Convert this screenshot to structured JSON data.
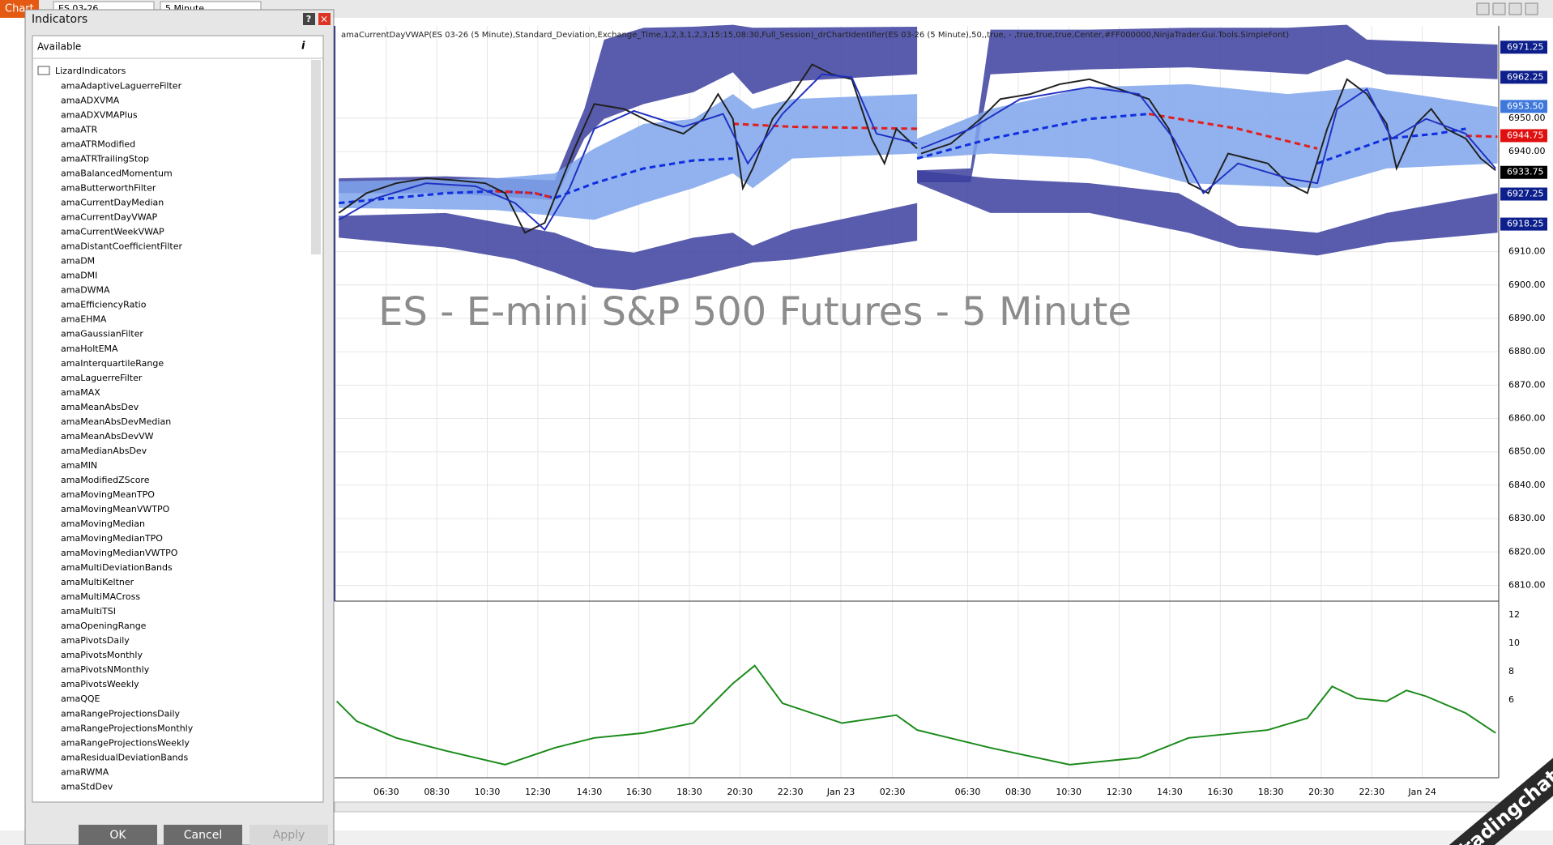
{
  "toolbar": {
    "tab": "Chart",
    "instrument": "ES 03-26",
    "interval": "5 Minute"
  },
  "dialog": {
    "title": "Indicators",
    "panel_title": "Available",
    "folder": "LizardIndicators",
    "items": [
      "amaAdaptiveLaguerreFilter",
      "amaADXVMA",
      "amaADXVMAPlus",
      "amaATR",
      "amaATRModified",
      "amaATRTrailingStop",
      "amaBalancedMomentum",
      "amaButterworthFilter",
      "amaCurrentDayMedian",
      "amaCurrentDayVWAP",
      "amaCurrentWeekVWAP",
      "amaDistantCoefficientFilter",
      "amaDM",
      "amaDMI",
      "amaDWMA",
      "amaEfficiencyRatio",
      "amaEHMA",
      "amaGaussianFilter",
      "amaHoltEMA",
      "amaInterquartileRange",
      "amaLaguerreFilter",
      "amaMAX",
      "amaMeanAbsDev",
      "amaMeanAbsDevMedian",
      "amaMeanAbsDevVW",
      "amaMedianAbsDev",
      "amaMIN",
      "amaModifiedZScore",
      "amaMovingMeanTPO",
      "amaMovingMeanVWTPO",
      "amaMovingMedian",
      "amaMovingMedianTPO",
      "amaMovingMedianVWTPO",
      "amaMultiDeviationBands",
      "amaMultiKeltner",
      "amaMultiMACross",
      "amaMultiTSI",
      "amaOpeningRange",
      "amaPivotsDaily",
      "amaPivotsMonthly",
      "amaPivotsNMonthly",
      "amaPivotsWeekly",
      "amaQQE",
      "amaRangeProjectionsDaily",
      "amaRangeProjectionsMonthly",
      "amaRangeProjectionsWeekly",
      "amaResidualDeviationBands",
      "amaRWMA",
      "amaStdDev"
    ],
    "buttons": [
      "OK",
      "Cancel",
      "Apply"
    ]
  },
  "chart": {
    "indicator_label": "amaCurrentDayVWAP(ES 03-26 (5 Minute),Standard_Deviation,Exchange_Time,1,2,3,1,2,3,15:15,08:30,Full_Session)_drChartIdentifier(ES 03-26 (5 Minute),50,,true, - ,true,true,true,Center,#FF000000,NinjaTrader.Gui.Tools.SimpleFont)",
    "watermark": "ES - E-mini S&P 500 Futures - 5 Minute",
    "price_labels": [
      "6950.00",
      "6940.00",
      "6910.00",
      "6900.00",
      "6890.00",
      "6880.00",
      "6870.00",
      "6860.00",
      "6850.00",
      "6840.00",
      "6830.00",
      "6820.00",
      "6810.00"
    ],
    "price_markers": [
      {
        "label": "6971.25",
        "color": "#0d1f8c"
      },
      {
        "label": "6962.25",
        "color": "#0d1f8c"
      },
      {
        "label": "6953.50",
        "color": "#3f78dc"
      },
      {
        "label": "6944.75",
        "color": "#e01010"
      },
      {
        "label": "6933.75",
        "color": "#000000"
      },
      {
        "label": "6927.25",
        "color": "#0d1f8c"
      },
      {
        "label": "6918.25",
        "color": "#0d1f8c"
      }
    ],
    "oscillator_labels": [
      "12",
      "10",
      "8",
      "6"
    ],
    "time_labels": [
      "06:30",
      "08:30",
      "10:30",
      "12:30",
      "14:30",
      "16:30",
      "18:30",
      "20:30",
      "22:30",
      "Jan 23",
      "02:30",
      "06:30",
      "08:30",
      "10:30",
      "12:30",
      "14:30",
      "16:30",
      "18:30",
      "20:30",
      "22:30",
      "Jan 24"
    ]
  },
  "branding": "Tradingchat.org"
}
